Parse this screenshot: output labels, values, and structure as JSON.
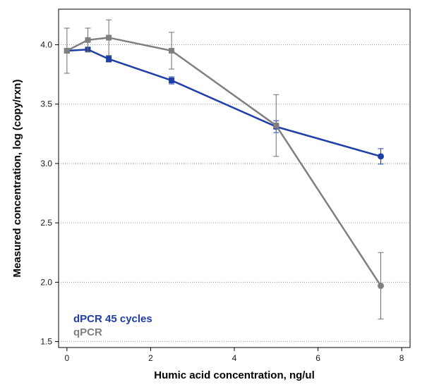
{
  "chart_data": {
    "type": "line",
    "title": "",
    "xlabel": "Humic acid concentration, ng/ul",
    "ylabel": "Measured concentration, log (copy/rxn)",
    "xlim": [
      -0.2,
      8.2
    ],
    "ylim": [
      1.45,
      4.3
    ],
    "xticks": [
      0,
      2,
      4,
      6,
      8
    ],
    "yticks": [
      1.5,
      2.0,
      2.5,
      3.0,
      3.5,
      4.0
    ],
    "ytick_labels": [
      "1.5",
      "2.0",
      "2.5",
      "3.0",
      "3.5",
      "4.0"
    ],
    "grid": "horizontal-dotted",
    "legend_position": "bottom-left",
    "series": [
      {
        "name": "dPCR 45 cycles",
        "color": "#1f3fa8",
        "marker": "circle",
        "x": [
          0,
          0.5,
          1,
          2.5,
          5,
          7.5
        ],
        "y": [
          3.95,
          3.96,
          3.88,
          3.7,
          3.31,
          3.06
        ],
        "err": [
          0.0,
          0.015,
          0.025,
          0.03,
          0.05,
          0.065
        ]
      },
      {
        "name": "qPCR",
        "color": "#7f7f7f",
        "marker": "square",
        "x": [
          0,
          0.5,
          1,
          2.5,
          5,
          7.5
        ],
        "y": [
          3.95,
          4.04,
          4.06,
          3.95,
          3.32,
          1.97
        ],
        "err": [
          0.19,
          0.1,
          0.15,
          0.155,
          0.26,
          0.28
        ]
      }
    ]
  }
}
